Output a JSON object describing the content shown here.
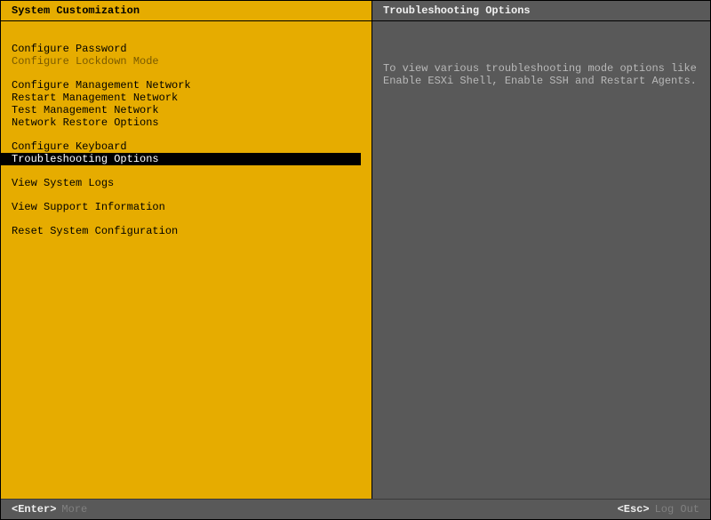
{
  "colors": {
    "left_bg": "#e6ac00",
    "right_bg": "#595959",
    "selected_bg": "#000000",
    "selected_fg": "#ffffff",
    "disabled_fg": "#7a5a00",
    "text_light": "#f0f0f0",
    "text_muted": "#b8b8b8",
    "footer_label": "#808080"
  },
  "left": {
    "title": "System Customization",
    "groups": [
      [
        {
          "label": "Configure Password",
          "state": "normal"
        },
        {
          "label": "Configure Lockdown Mode",
          "state": "disabled"
        }
      ],
      [
        {
          "label": "Configure Management Network",
          "state": "normal"
        },
        {
          "label": "Restart Management Network",
          "state": "normal"
        },
        {
          "label": "Test Management Network",
          "state": "normal"
        },
        {
          "label": "Network Restore Options",
          "state": "normal"
        }
      ],
      [
        {
          "label": "Configure Keyboard",
          "state": "normal"
        },
        {
          "label": "Troubleshooting Options",
          "state": "selected"
        }
      ],
      [
        {
          "label": "View System Logs",
          "state": "normal"
        }
      ],
      [
        {
          "label": "View Support Information",
          "state": "normal"
        }
      ],
      [
        {
          "label": "Reset System Configuration",
          "state": "normal"
        }
      ]
    ]
  },
  "right": {
    "title": "Troubleshooting Options",
    "description": "To view various troubleshooting mode options like Enable ESXi Shell, Enable SSH and Restart Agents."
  },
  "footer": {
    "enter_key": "<Enter>",
    "enter_label": "More",
    "esc_key": "<Esc>",
    "esc_label": "Log Out"
  }
}
